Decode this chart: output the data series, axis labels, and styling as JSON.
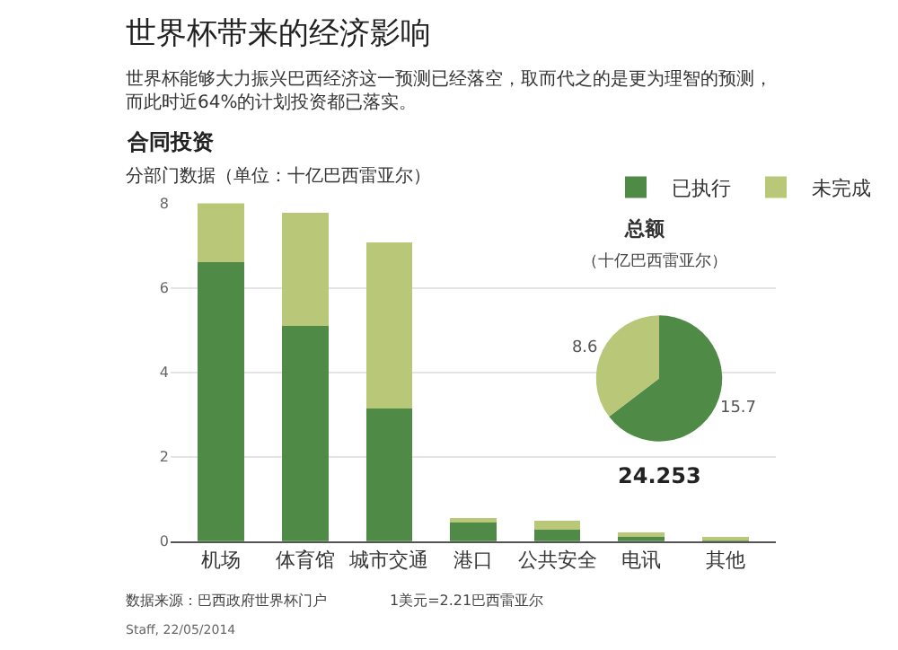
{
  "chart_data": [
    {
      "type": "bar",
      "stacked": true,
      "title": "世界杯带来的经济影响",
      "subtitle": "世界杯能够大力振兴巴西经济这一预测已经落空，取而代之的是更为理智的预测，而此时近64%的计划投资都已落实。",
      "ylabel": "分部门数据（单位：十亿巴西雷亚尔）",
      "categories": [
        "机场",
        "体育馆",
        "城市交通",
        "港口",
        "公共安全",
        "电讯",
        "其他"
      ],
      "series": [
        {
          "name": "已执行",
          "color": "#4f8a46",
          "values": [
            6.6,
            5.1,
            3.15,
            0.45,
            0.28,
            0.1,
            0.03
          ]
        },
        {
          "name": "未完成",
          "color": "#b9c778",
          "values": [
            1.4,
            2.67,
            3.93,
            0.1,
            0.2,
            0.11,
            0.04
          ]
        }
      ],
      "ylim": [
        0,
        8
      ],
      "yticks": [
        0,
        2,
        4,
        6,
        8
      ],
      "grid": "y",
      "legend": "top right",
      "annotations": [
        "合同投资",
        "数据来源：巴西政府世界杯门户",
        "1美元=2.21巴西雷亚尔",
        "Staff, 22/05/2014"
      ]
    },
    {
      "type": "pie",
      "title": "总额",
      "subtitle": "（十亿巴西雷亚尔）",
      "categories": [
        null,
        null
      ],
      "values": [
        15.7,
        8.6
      ],
      "colors": [
        "#4f8a46",
        "#b9c778"
      ],
      "data_labels": true,
      "annotations": [
        "24.253"
      ]
    }
  ]
}
